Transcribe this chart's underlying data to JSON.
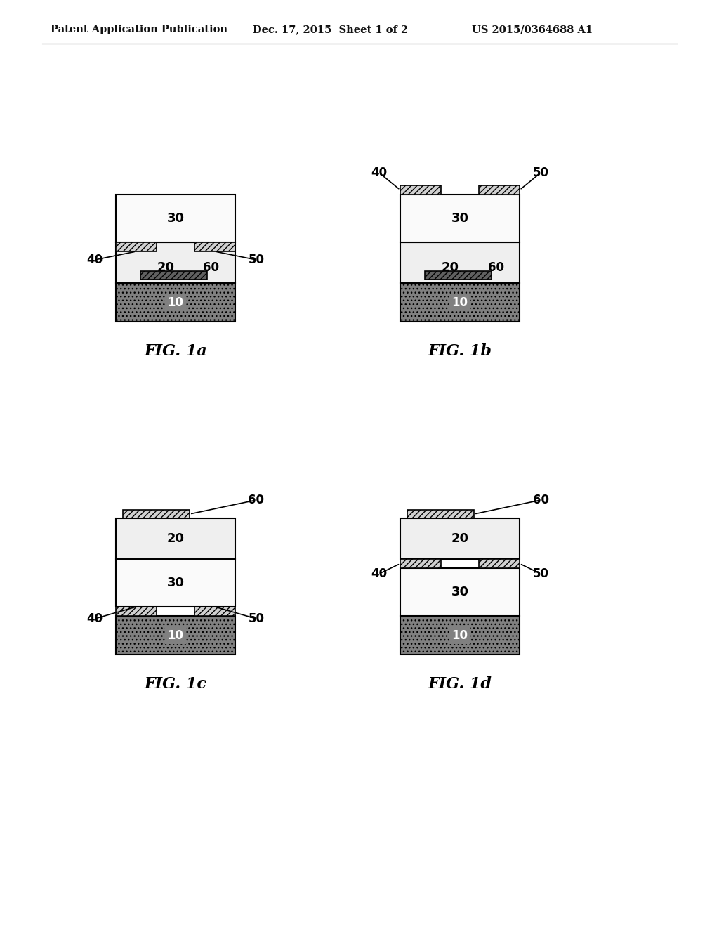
{
  "header_left": "Patent Application Publication",
  "header_mid": "Dec. 17, 2015  Sheet 1 of 2",
  "header_right": "US 2015/0364688 A1",
  "fig_labels": [
    "FIG. 1a",
    "FIG. 1b",
    "FIG. 1c",
    "FIG. 1d"
  ],
  "bg_color": "#ffffff"
}
